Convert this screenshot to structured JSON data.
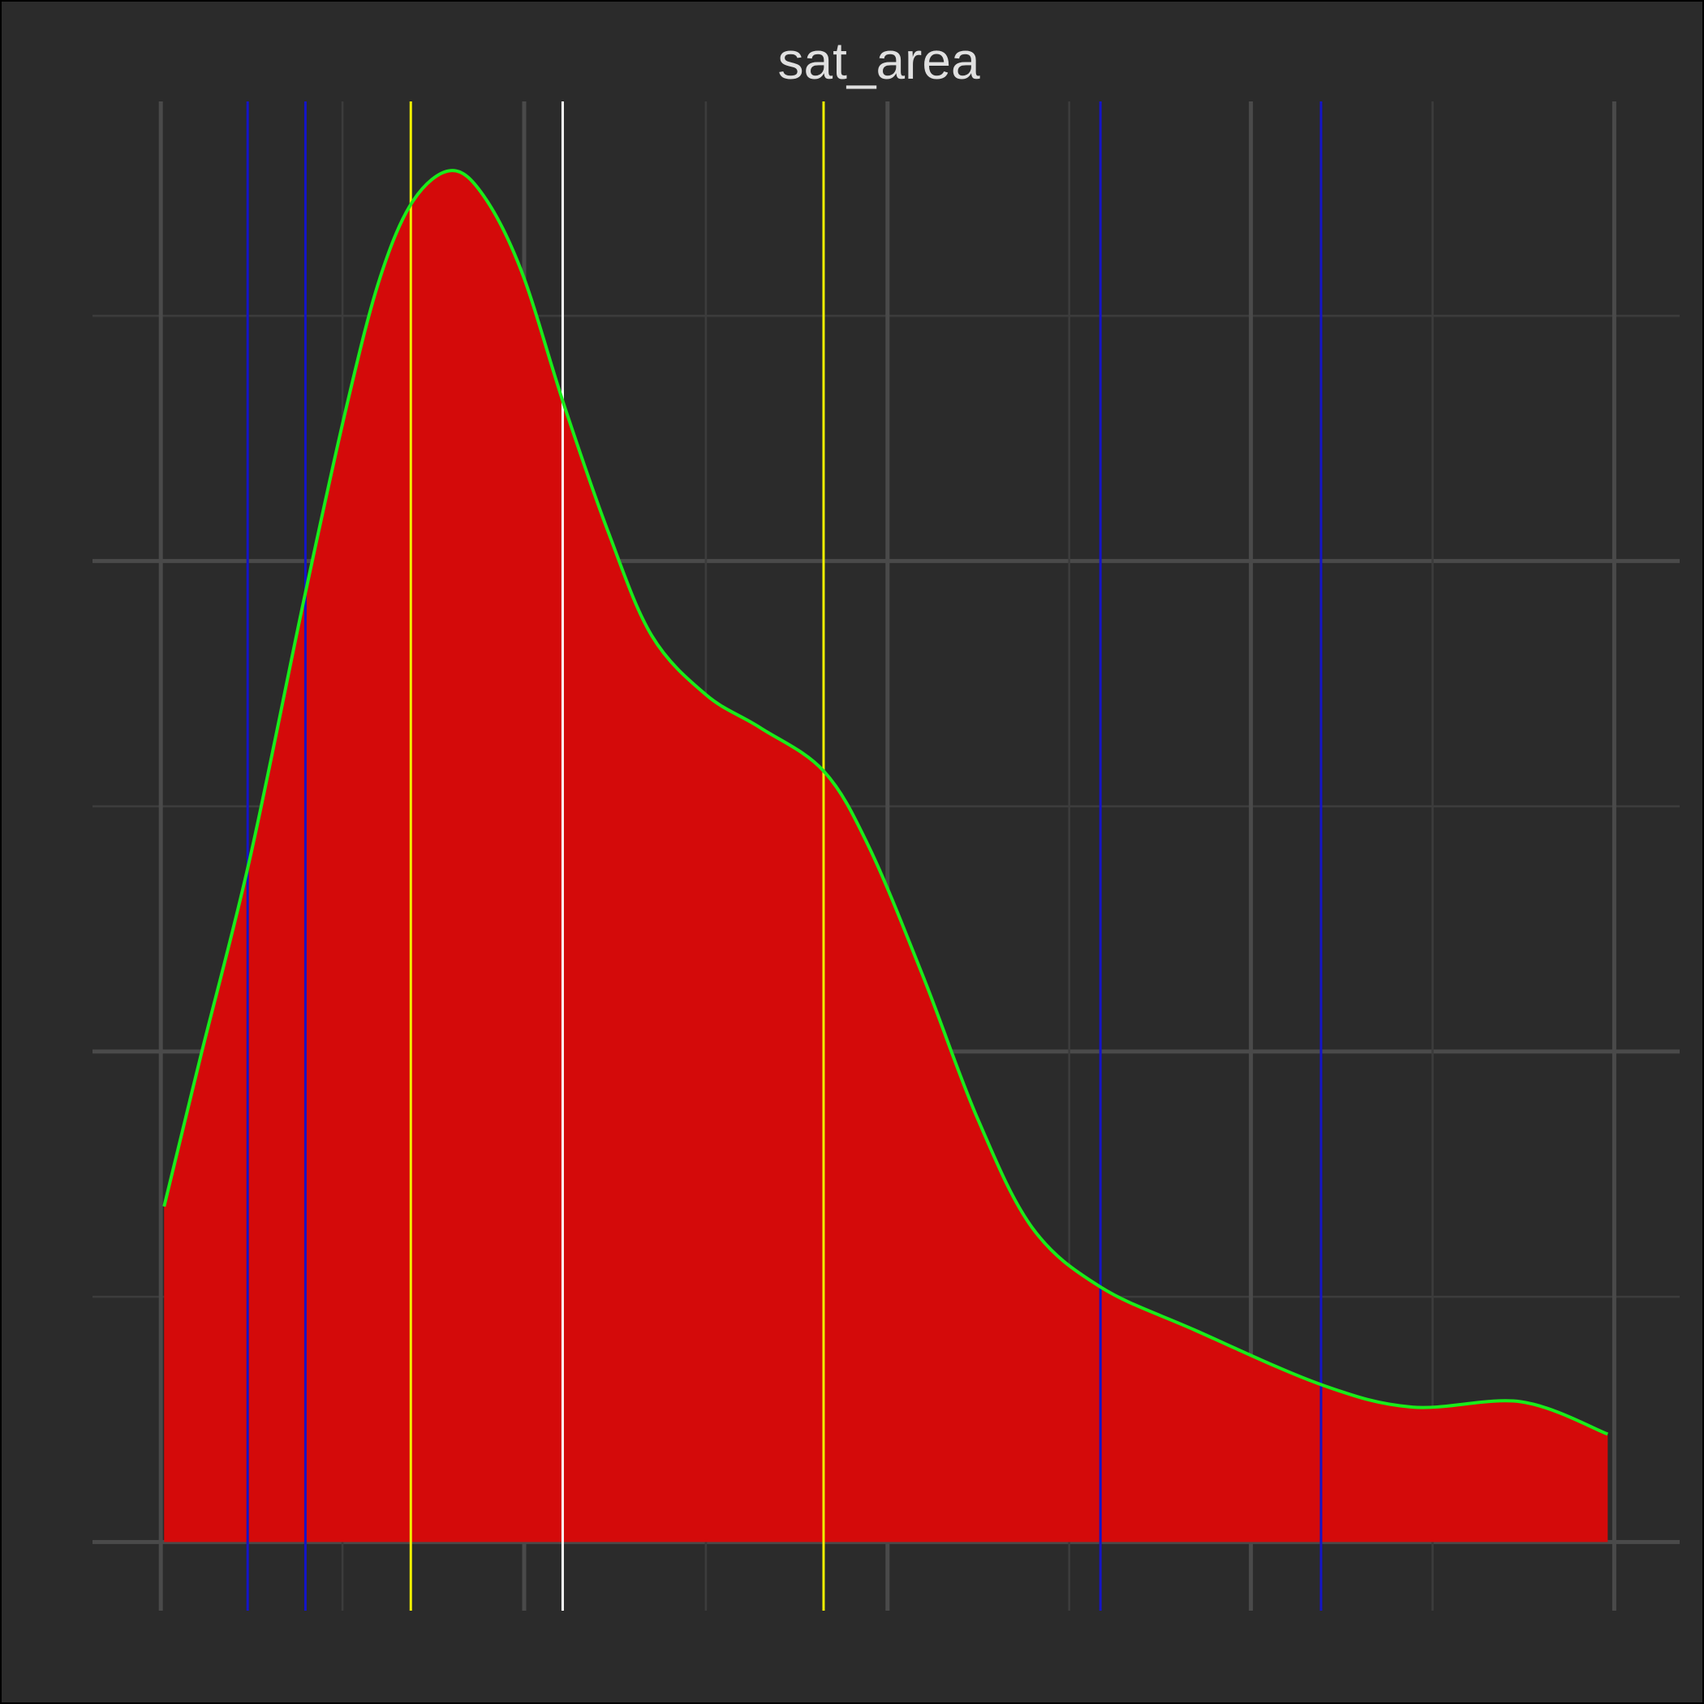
{
  "chart_data": {
    "type": "density",
    "title": "sat_area",
    "x": [
      0.009,
      0.111,
      0.245,
      0.395,
      0.514,
      0.604,
      0.694,
      0.798,
      0.888,
      0.993,
      1.112,
      1.232,
      1.351,
      1.501,
      1.65,
      1.824,
      1.949,
      2.099,
      2.248,
      2.398,
      2.586,
      2.846,
      3.193,
      3.444,
      3.743,
      3.982
    ],
    "values": [
      0.684,
      0.994,
      1.393,
      1.925,
      2.324,
      2.579,
      2.734,
      2.796,
      2.745,
      2.59,
      2.313,
      2.058,
      1.848,
      1.727,
      1.66,
      1.572,
      1.417,
      1.151,
      0.863,
      0.641,
      0.52,
      0.432,
      0.321,
      0.275,
      0.286,
      0.22
    ],
    "fill_color": "#d40a0a",
    "line_color": "#1aeb1a",
    "vlines": [
      {
        "x": 0.239,
        "color": "#1414c8"
      },
      {
        "x": 0.398,
        "color": "#1414c8"
      },
      {
        "x": 2.586,
        "color": "#1414c8"
      },
      {
        "x": 3.193,
        "color": "#1414c8"
      },
      {
        "x": 0.688,
        "color": "#f0f000"
      },
      {
        "x": 1.824,
        "color": "#f0f000"
      },
      {
        "x": 1.106,
        "color": "#ffffff"
      }
    ],
    "xlim": [
      -0.188,
      4.18
    ],
    "ylim": [
      -0.14,
      2.937
    ],
    "xticks": [
      0,
      0.5,
      1,
      1.5,
      2,
      2.5,
      3,
      3.5,
      4
    ],
    "yticks": [
      0,
      0.5,
      1,
      1.5,
      2,
      2.5
    ],
    "grid": true
  }
}
